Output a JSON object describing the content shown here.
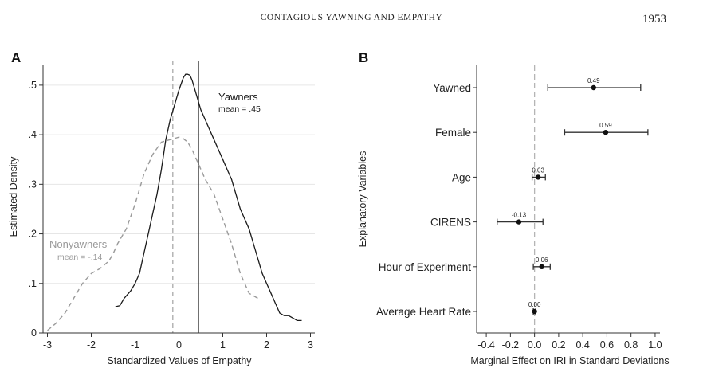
{
  "header": {
    "running_title": "CONTAGIOUS YAWNING AND EMPATHY",
    "page_number": "1953"
  },
  "colors": {
    "yawners_line": "#1a1a1a",
    "nonyawners_line": "#9a9a9a",
    "axis": "#333333",
    "grid": "#e6e6e6",
    "zero_line": "#b5b5b5"
  },
  "chart_data": [
    {
      "type": "line",
      "panel_label": "A",
      "title": "",
      "xlabel": "Standardized Values of Empathy",
      "ylabel": "Estimated Density",
      "xlim": [
        -3.1,
        3.1
      ],
      "ylim": [
        0,
        0.54
      ],
      "x_ticks": [
        -3,
        -2,
        -1,
        0,
        1,
        2,
        3
      ],
      "x_tick_labels": [
        "-3",
        "-2",
        "-1",
        "0",
        "1",
        "2",
        "3"
      ],
      "y_ticks": [
        0,
        0.1,
        0.2,
        0.3,
        0.4,
        0.5
      ],
      "y_tick_labels": [
        "0",
        ".1",
        ".2",
        ".3",
        ".4",
        ".5"
      ],
      "grid": true,
      "series": [
        {
          "name": "Yawners",
          "mean_label": "mean = .45",
          "mean": 0.45,
          "style": "solid",
          "x": [
            -1.45,
            -1.35,
            -1.25,
            -1.1,
            -1.0,
            -0.9,
            -0.8,
            -0.7,
            -0.6,
            -0.5,
            -0.4,
            -0.3,
            -0.2,
            -0.1,
            0.0,
            0.1,
            0.15,
            0.2,
            0.25,
            0.3,
            0.4,
            0.5,
            0.6,
            0.7,
            0.8,
            0.9,
            1.0,
            1.1,
            1.2,
            1.3,
            1.4,
            1.5,
            1.6,
            1.7,
            1.8,
            1.9,
            2.0,
            2.1,
            2.2,
            2.3,
            2.4,
            2.5,
            2.6,
            2.7,
            2.8
          ],
          "y": [
            0.053,
            0.055,
            0.07,
            0.085,
            0.1,
            0.12,
            0.16,
            0.2,
            0.24,
            0.28,
            0.33,
            0.39,
            0.43,
            0.46,
            0.49,
            0.515,
            0.522,
            0.522,
            0.52,
            0.51,
            0.48,
            0.45,
            0.43,
            0.41,
            0.39,
            0.37,
            0.35,
            0.33,
            0.31,
            0.28,
            0.25,
            0.23,
            0.21,
            0.18,
            0.15,
            0.12,
            0.1,
            0.08,
            0.06,
            0.04,
            0.035,
            0.035,
            0.03,
            0.025,
            0.025
          ]
        },
        {
          "name": "Nonyawners",
          "mean_label": "mean = -.14",
          "mean": -0.14,
          "style": "dashed",
          "x": [
            -3.0,
            -2.8,
            -2.6,
            -2.4,
            -2.2,
            -2.0,
            -1.8,
            -1.6,
            -1.5,
            -1.4,
            -1.2,
            -1.0,
            -0.8,
            -0.6,
            -0.4,
            -0.2,
            0.0,
            0.1,
            0.2,
            0.3,
            0.4,
            0.6,
            0.8,
            1.0,
            1.2,
            1.4,
            1.6,
            1.8
          ],
          "y": [
            0.005,
            0.02,
            0.04,
            0.07,
            0.1,
            0.12,
            0.13,
            0.145,
            0.16,
            0.18,
            0.21,
            0.26,
            0.32,
            0.36,
            0.385,
            0.39,
            0.395,
            0.392,
            0.385,
            0.37,
            0.35,
            0.31,
            0.28,
            0.23,
            0.18,
            0.12,
            0.08,
            0.07
          ]
        }
      ],
      "annotations": [
        {
          "text": "Yawners",
          "series": "Yawners"
        },
        {
          "text": "mean = .45",
          "series": "Yawners"
        },
        {
          "text": "Nonyawners",
          "series": "Nonyawners"
        },
        {
          "text": "mean = -.14",
          "series": "Nonyawners"
        }
      ]
    },
    {
      "type": "scatter",
      "subtype": "coefficient-plot-with-error-bars",
      "panel_label": "B",
      "title": "",
      "xlabel": "Marginal Effect on IRI in Standard Deviations",
      "ylabel": "Explanatory Variables",
      "xlim": [
        -0.48,
        1.04
      ],
      "x_ticks": [
        -0.4,
        -0.2,
        0,
        0.2,
        0.4,
        0.6,
        0.8,
        1.0
      ],
      "x_tick_labels": [
        "-0.4",
        "-0.2",
        "0.0",
        "0.2",
        "0.4",
        "0.6",
        "0.8",
        "1.0"
      ],
      "grid": false,
      "categories": [
        "Yawned",
        "Female",
        "Age",
        "CIRENS",
        "Hour of Experiment",
        "Average Heart Rate"
      ],
      "values": [
        0.49,
        0.59,
        0.03,
        -0.13,
        0.06,
        0.0
      ],
      "value_labels": [
        "0.49",
        "0.59",
        "0.03",
        "-0.13",
        "0.06",
        "0.00"
      ],
      "ci_low": [
        0.11,
        0.25,
        -0.02,
        -0.31,
        -0.01,
        -0.01
      ],
      "ci_high": [
        0.88,
        0.94,
        0.09,
        0.07,
        0.13,
        0.01
      ]
    }
  ]
}
